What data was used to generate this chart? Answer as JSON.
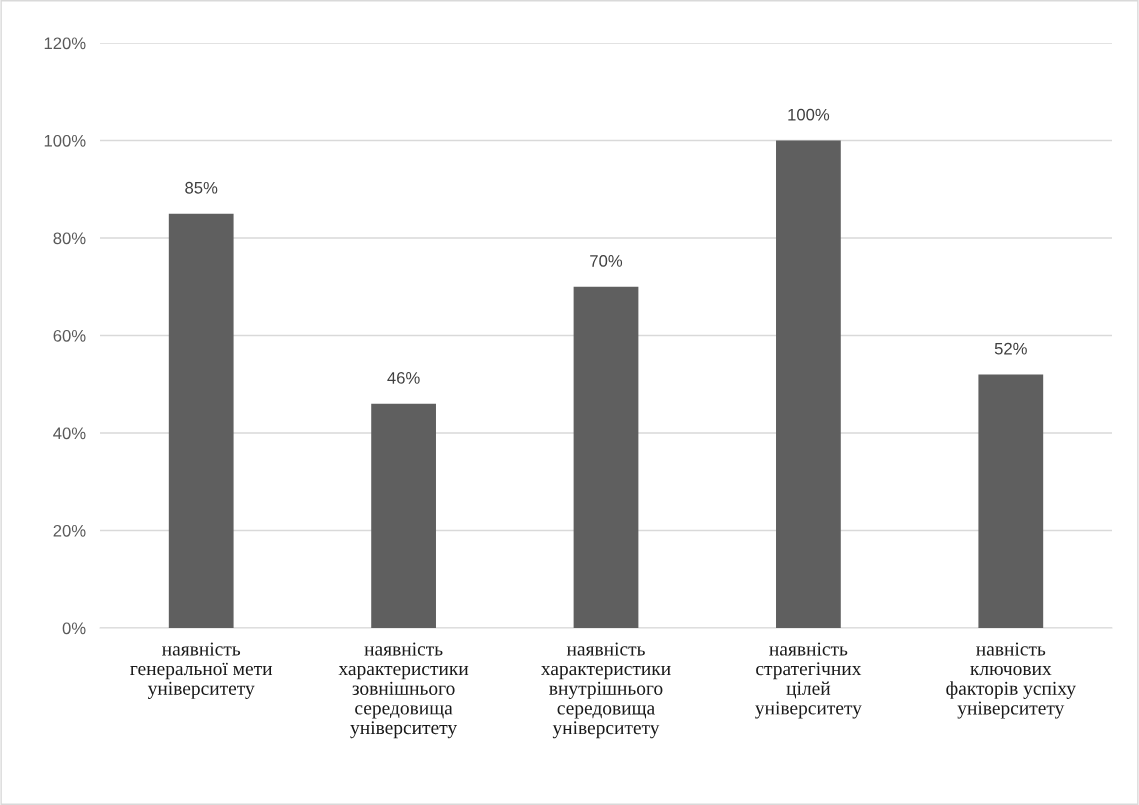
{
  "chart_data": {
    "type": "bar",
    "categories": [
      "наявність\nгенеральної мети\nуніверситету",
      "наявність\nхарактеристики\nзовнішнього\nсередовища\nуніверситету",
      "наявність\nхарактеристики\nвнутрішнього\nсередовища\nуніверситету",
      "наявність\nстратегічних\nцілей\nуніверситету",
      "навність\nключових\nфакторів успіху\nуніверситету"
    ],
    "values": [
      85,
      46,
      70,
      100,
      52
    ],
    "value_labels": [
      "85%",
      "46%",
      "70%",
      "100%",
      "52%"
    ],
    "color": "#5f5f5f",
    "ylim": [
      0,
      120
    ],
    "yticks": [
      {
        "value": 0,
        "label": "0%"
      },
      {
        "value": 20,
        "label": "20%"
      },
      {
        "value": 40,
        "label": "40%"
      },
      {
        "value": 60,
        "label": "60%"
      },
      {
        "value": 80,
        "label": "80%"
      },
      {
        "value": 100,
        "label": "100%"
      },
      {
        "value": 120,
        "label": "120%"
      }
    ],
    "grid": "y"
  }
}
